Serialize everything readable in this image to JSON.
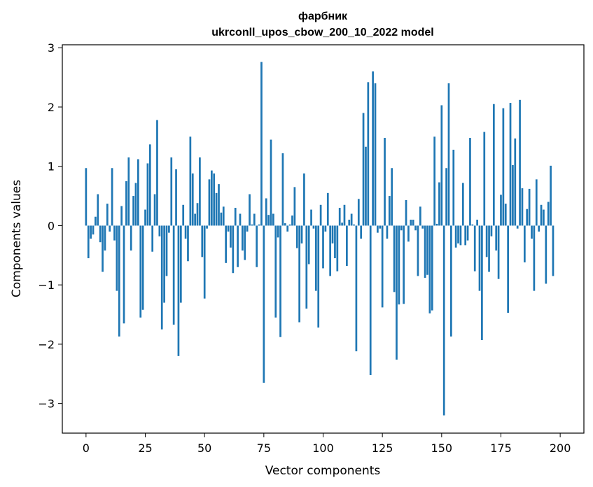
{
  "chart_data": {
    "type": "bar",
    "title": "фарбник",
    "subtitle": "ukrconll_upos_cbow_200_10_2022 model",
    "xlabel": "Vector components",
    "ylabel": "Components values",
    "xlim": [
      -10,
      210
    ],
    "ylim": [
      -3.5,
      3.05
    ],
    "xticks": [
      0,
      25,
      50,
      75,
      100,
      125,
      150,
      175,
      200
    ],
    "yticks": [
      -3,
      -2,
      -1,
      0,
      1,
      2,
      3
    ],
    "xtick_labels": [
      "0",
      "25",
      "50",
      "75",
      "100",
      "125",
      "150",
      "175",
      "200"
    ],
    "ytick_labels": [
      "−3",
      "−2",
      "−1",
      "0",
      "1",
      "2",
      "3"
    ],
    "bar_color": "#1f77b4",
    "values": [
      0.97,
      -0.55,
      -0.22,
      -0.15,
      0.15,
      0.53,
      -0.28,
      -0.78,
      -0.42,
      0.37,
      -0.1,
      0.97,
      -0.25,
      -1.1,
      -1.87,
      0.33,
      -1.65,
      0.75,
      1.15,
      -0.42,
      0.5,
      0.72,
      1.12,
      -1.55,
      -1.42,
      0.27,
      1.05,
      1.37,
      -0.44,
      0.53,
      1.78,
      -0.18,
      -1.75,
      -1.3,
      -0.85,
      -0.12,
      1.15,
      -1.67,
      0.95,
      -2.2,
      -1.3,
      0.35,
      -0.22,
      -0.6,
      1.5,
      0.88,
      0.2,
      0.38,
      1.15,
      -0.53,
      -1.23,
      -0.05,
      0.78,
      0.93,
      0.88,
      0.55,
      0.7,
      0.22,
      0.32,
      -0.63,
      -0.1,
      -0.37,
      -0.8,
      0.3,
      -0.7,
      0.2,
      -0.42,
      -0.58,
      -0.1,
      0.53,
      0.02,
      0.2,
      -0.7,
      0.02,
      2.76,
      -2.65,
      0.46,
      0.18,
      1.45,
      0.2,
      -1.55,
      -0.2,
      -1.88,
      1.22,
      0.04,
      -0.1,
      0.02,
      0.17,
      0.65,
      -0.38,
      -1.63,
      -0.3,
      0.88,
      -1.4,
      -0.65,
      0.27,
      -0.05,
      -1.1,
      -1.72,
      0.35,
      -0.72,
      -0.1,
      0.55,
      -0.85,
      -0.3,
      -0.55,
      -0.77,
      0.3,
      0.05,
      0.35,
      -0.68,
      0.1,
      0.2,
      0.02,
      -2.12,
      0.45,
      -0.22,
      1.9,
      1.33,
      2.42,
      -2.52,
      2.6,
      2.4,
      -0.12,
      -0.05,
      -1.38,
      1.48,
      -0.22,
      0.5,
      0.97,
      -1.12,
      -2.26,
      -1.33,
      -0.08,
      -1.32,
      0.43,
      -0.27,
      0.1,
      0.1,
      -0.08,
      -0.85,
      0.32,
      -0.05,
      -0.88,
      -0.83,
      -1.48,
      -1.43,
      1.5,
      0.03,
      0.73,
      2.03,
      -3.2,
      0.97,
      2.4,
      -1.87,
      1.28,
      -0.37,
      -0.3,
      -0.33,
      0.72,
      -0.33,
      -0.25,
      1.48,
      0.02,
      -0.77,
      0.1,
      -1.1,
      -1.93,
      1.58,
      -0.53,
      -0.78,
      -0.18,
      2.05,
      -0.42,
      -0.9,
      0.52,
      1.98,
      0.37,
      -1.47,
      2.07,
      1.02,
      1.47,
      -0.05,
      2.12,
      0.63,
      -0.62,
      0.28,
      0.62,
      -0.22,
      -1.1,
      0.78,
      -0.1,
      0.35,
      0.27,
      -0.98,
      0.4,
      1.01,
      -0.85
    ]
  }
}
